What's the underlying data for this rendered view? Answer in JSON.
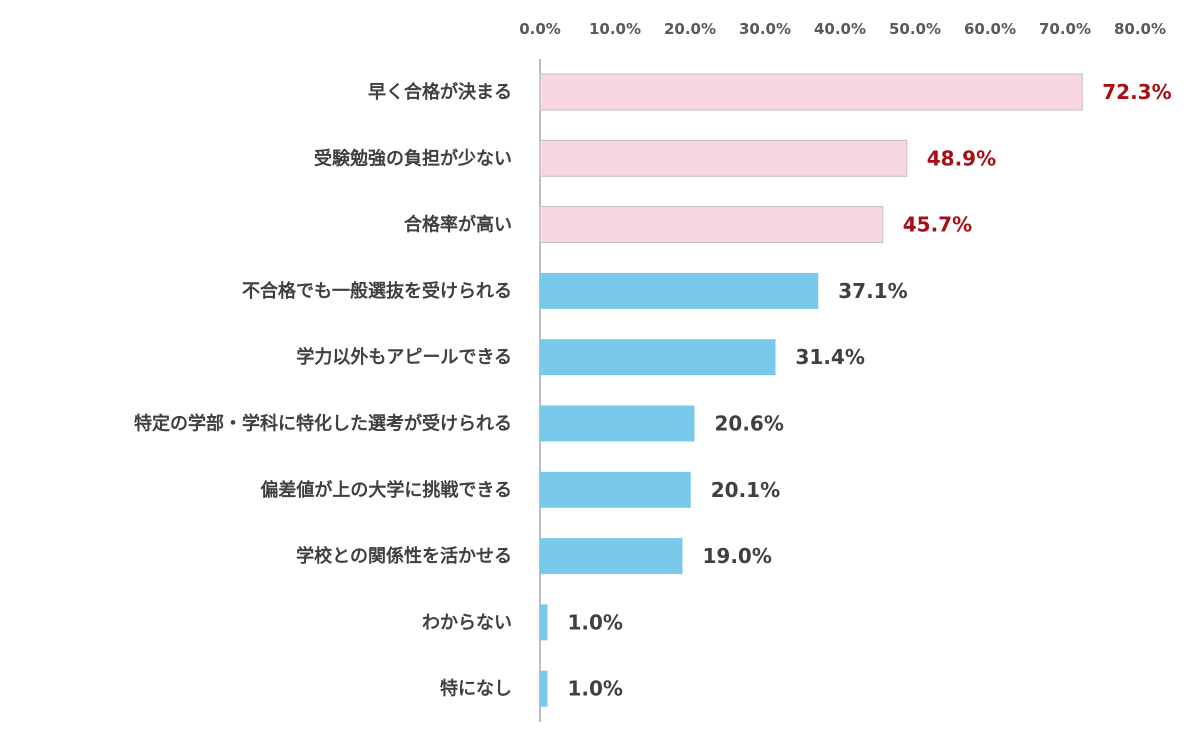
{
  "chart_data": {
    "type": "bar",
    "orientation": "horizontal",
    "categories": [
      "早く合格が決まる",
      "受験勉強の負担が少ない",
      "合格率が高い",
      "不合格でも一般選抜を受けられる",
      "学力以外もアピールできる",
      "特定の学部・学科に特化した選考が受けられる",
      "偏差値が上の大学に挑戦できる",
      "学校との関係性を活かせる",
      "わからない",
      "特になし"
    ],
    "values": [
      72.3,
      48.9,
      45.7,
      37.1,
      31.4,
      20.6,
      20.1,
      19.0,
      1.0,
      1.0
    ],
    "data_labels": [
      "72.3%",
      "48.9%",
      "45.7%",
      "37.1%",
      "31.4%",
      "20.6%",
      "20.1%",
      "19.0%",
      "1.0%",
      "1.0%"
    ],
    "highlighted_count": 3,
    "xlim": [
      0,
      80
    ],
    "x_ticks": [
      "0.0%",
      "10.0%",
      "20.0%",
      "30.0%",
      "40.0%",
      "50.0%",
      "60.0%",
      "70.0%",
      "80.0%"
    ],
    "x_axis_position": "top",
    "grid": false,
    "title": "",
    "xlabel": "",
    "ylabel": "",
    "colors": {
      "highlight_bar": "#f9d6e4",
      "highlight_border": "#bfbfbf",
      "normal_bar": "#79c9ea",
      "highlight_label": "#a50f15",
      "normal_label": "#404040",
      "axis_line": "#a6a6a6"
    }
  }
}
